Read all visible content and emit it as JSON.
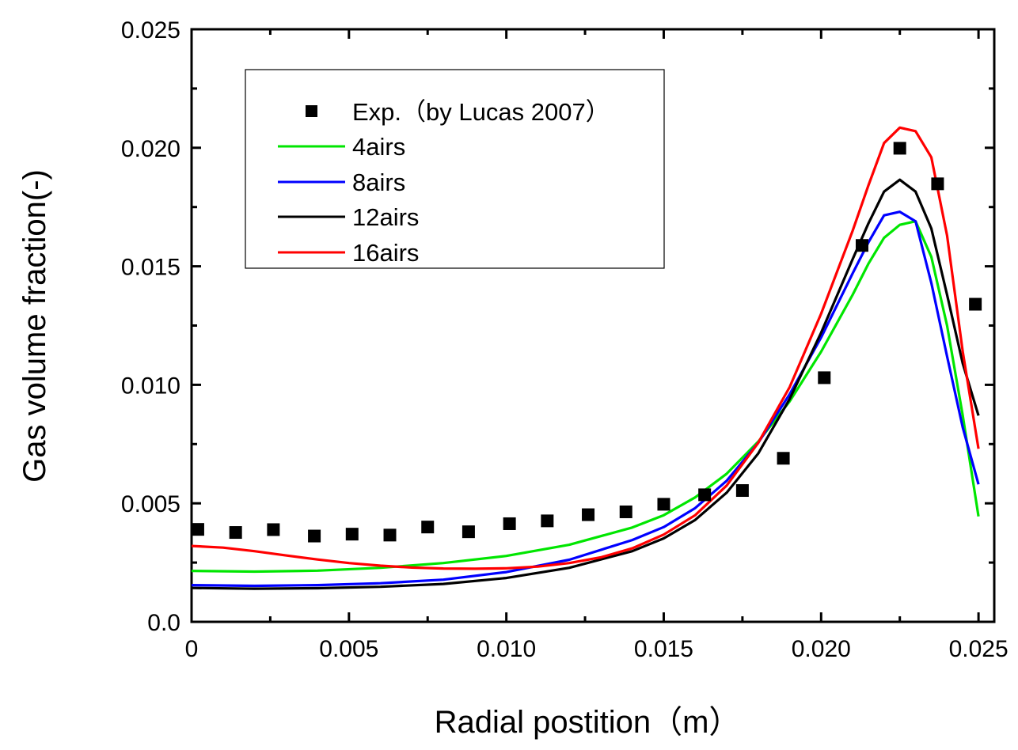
{
  "chart_data": {
    "type": "line",
    "title": "",
    "xlabel": "Radial postition（m）",
    "ylabel": "Gas volume fraction(-)",
    "xlim": [
      0,
      0.0255
    ],
    "ylim": [
      0,
      0.025
    ],
    "x_ticks": [
      0,
      0.005,
      0.01,
      0.015,
      0.02,
      0.025
    ],
    "x_tick_labels": [
      "0",
      "0.005",
      "0.010",
      "0.015",
      "0.020",
      "0.025"
    ],
    "y_ticks": [
      0,
      0.005,
      0.01,
      0.015,
      0.02,
      0.025
    ],
    "y_tick_labels": [
      "0.0",
      "0.005",
      "0.010",
      "0.015",
      "0.020",
      "0.025"
    ],
    "grid": false,
    "legend_position": "top-left",
    "series": [
      {
        "name": "Exp.（by Lucas 2007）",
        "kind": "scatter",
        "marker": "square",
        "color": "#000000",
        "x": [
          0.0002,
          0.0014,
          0.0026,
          0.0039,
          0.0051,
          0.0063,
          0.0075,
          0.0088,
          0.0101,
          0.0113,
          0.0126,
          0.0138,
          0.015,
          0.0163,
          0.0175,
          0.0188,
          0.0201,
          0.0213,
          0.0225,
          0.0237,
          0.0249
        ],
        "y": [
          0.0039,
          0.00377,
          0.00389,
          0.00362,
          0.0037,
          0.00366,
          0.004,
          0.0038,
          0.00414,
          0.00426,
          0.00452,
          0.00464,
          0.00496,
          0.00536,
          0.00554,
          0.0069,
          0.0103,
          0.01588,
          0.01998,
          0.01848,
          0.0134
        ]
      },
      {
        "name": "4airs",
        "kind": "line",
        "color": "#00e600",
        "x": [
          0,
          0.002,
          0.004,
          0.006,
          0.008,
          0.01,
          0.012,
          0.014,
          0.015,
          0.016,
          0.017,
          0.018,
          0.019,
          0.02,
          0.021,
          0.0215,
          0.022,
          0.0225,
          0.023,
          0.0235,
          0.024,
          0.0245,
          0.025
        ],
        "y": [
          0.00215,
          0.00212,
          0.00216,
          0.00228,
          0.00248,
          0.00278,
          0.00325,
          0.00398,
          0.0045,
          0.00525,
          0.00625,
          0.0076,
          0.0093,
          0.0114,
          0.0138,
          0.0151,
          0.0162,
          0.01675,
          0.0169,
          0.0154,
          0.0125,
          0.0087,
          0.00445
        ]
      },
      {
        "name": "8airs",
        "kind": "line",
        "color": "#0000ff",
        "x": [
          0,
          0.002,
          0.004,
          0.006,
          0.008,
          0.01,
          0.012,
          0.014,
          0.015,
          0.016,
          0.017,
          0.018,
          0.019,
          0.02,
          0.021,
          0.0215,
          0.022,
          0.0225,
          0.023,
          0.0235,
          0.024,
          0.0245,
          0.025
        ],
        "y": [
          0.00155,
          0.00152,
          0.00155,
          0.00163,
          0.00178,
          0.0021,
          0.00262,
          0.00345,
          0.004,
          0.0048,
          0.00595,
          0.00755,
          0.0096,
          0.012,
          0.0147,
          0.016,
          0.01715,
          0.0173,
          0.0169,
          0.0143,
          0.0112,
          0.0082,
          0.0058
        ]
      },
      {
        "name": "12airs",
        "kind": "line",
        "color": "#000000",
        "x": [
          0,
          0.002,
          0.004,
          0.006,
          0.008,
          0.01,
          0.012,
          0.014,
          0.015,
          0.016,
          0.017,
          0.018,
          0.019,
          0.02,
          0.021,
          0.0215,
          0.022,
          0.0225,
          0.023,
          0.0235,
          0.024,
          0.0245,
          0.025
        ],
        "y": [
          0.00143,
          0.0014,
          0.00142,
          0.00148,
          0.0016,
          0.00185,
          0.00228,
          0.00298,
          0.00352,
          0.0043,
          0.00545,
          0.0071,
          0.0094,
          0.0122,
          0.0153,
          0.0168,
          0.01815,
          0.01865,
          0.01815,
          0.0166,
          0.0138,
          0.0109,
          0.0087
        ]
      },
      {
        "name": "16airs",
        "kind": "line",
        "color": "#ff0000",
        "x": [
          0,
          0.001,
          0.002,
          0.003,
          0.004,
          0.005,
          0.006,
          0.007,
          0.008,
          0.009,
          0.01,
          0.011,
          0.012,
          0.013,
          0.014,
          0.015,
          0.016,
          0.017,
          0.018,
          0.019,
          0.02,
          0.021,
          0.0215,
          0.022,
          0.0225,
          0.023,
          0.0235,
          0.024,
          0.0245,
          0.025
        ],
        "y": [
          0.0032,
          0.00313,
          0.00298,
          0.0028,
          0.00263,
          0.00248,
          0.00237,
          0.00229,
          0.00225,
          0.00224,
          0.00226,
          0.00233,
          0.00248,
          0.00272,
          0.0031,
          0.00368,
          0.0045,
          0.00575,
          0.00755,
          0.0099,
          0.013,
          0.0165,
          0.0184,
          0.0202,
          0.02085,
          0.0207,
          0.0196,
          0.0163,
          0.0114,
          0.0073
        ]
      }
    ]
  }
}
